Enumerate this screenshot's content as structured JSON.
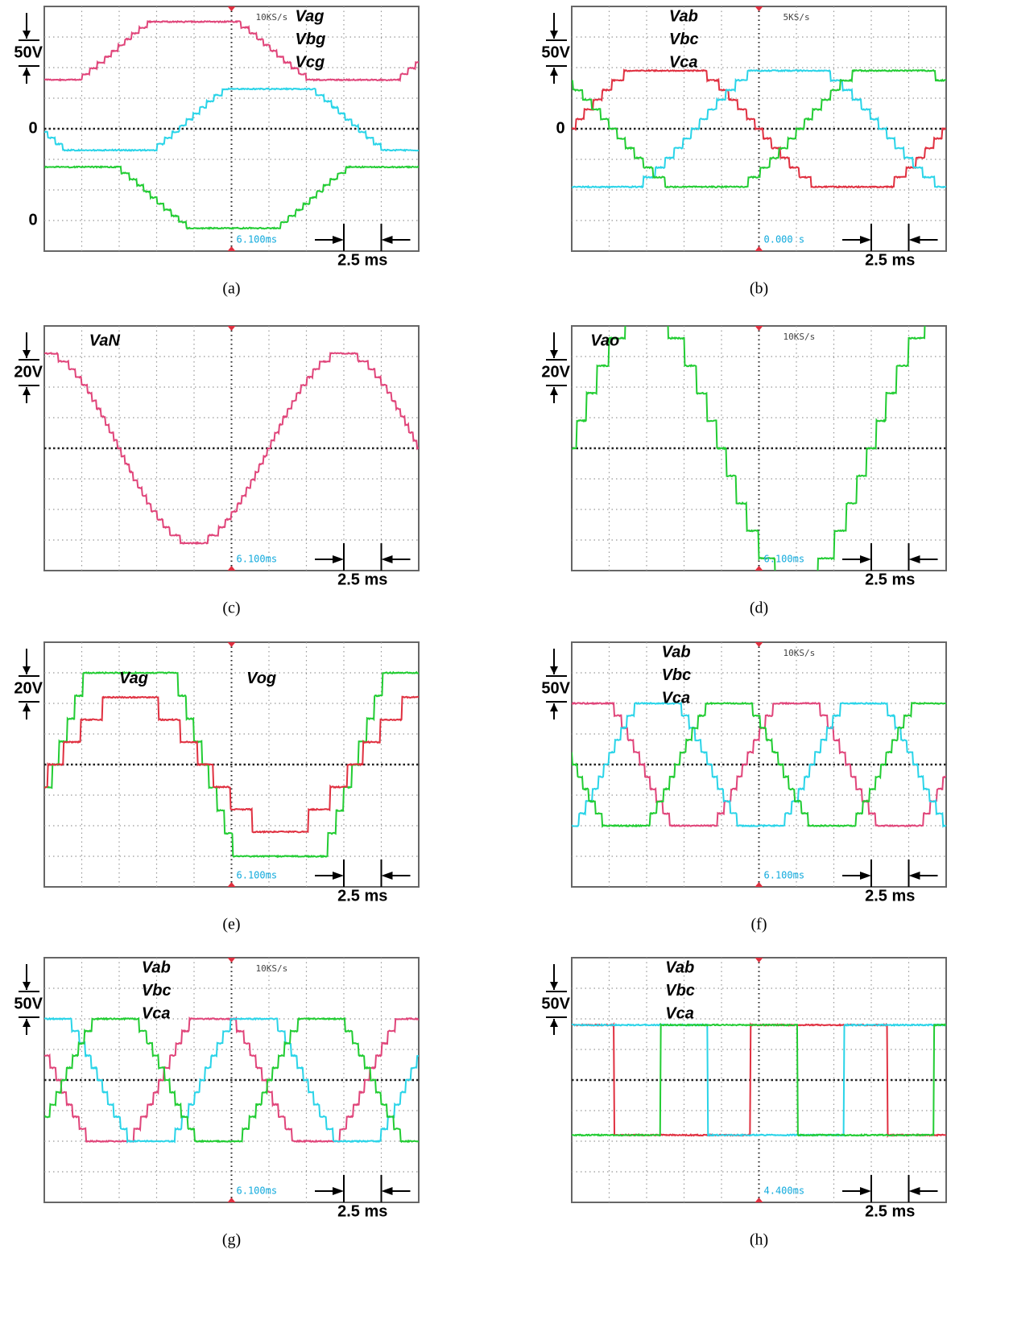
{
  "panels": [
    {
      "caption": "(a)",
      "scale": "50V",
      "zero_labels": [
        "0",
        "0"
      ],
      "signals": [
        "Vag",
        "Vbg",
        "Vcg"
      ],
      "sample_rate": "10KS/s",
      "timestamp": "6.100ms",
      "time_div": "2.5 ms"
    },
    {
      "caption": "(b)",
      "scale": "50V",
      "zero_labels": [
        "0"
      ],
      "signals": [
        "Vab",
        "Vbc",
        "Vca"
      ],
      "sample_rate": "5KS/s",
      "timestamp": "0.000 s",
      "time_div": "2.5 ms"
    },
    {
      "caption": "(c)",
      "scale": "20V",
      "zero_labels": [],
      "signals": [
        "VaN"
      ],
      "timestamp": "6.100ms",
      "time_div": "2.5 ms"
    },
    {
      "caption": "(d)",
      "scale": "20V",
      "zero_labels": [],
      "signals": [
        "Vao"
      ],
      "sample_rate": "10KS/s",
      "timestamp": "6.100ms",
      "time_div": "2.5 ms"
    },
    {
      "caption": "(e)",
      "scale": "20V",
      "zero_labels": [],
      "signals": [
        "Vag",
        "Vog"
      ],
      "timestamp": "6.100ms",
      "time_div": "2.5 ms"
    },
    {
      "caption": "(f)",
      "scale": "50V",
      "zero_labels": [],
      "signals": [
        "Vab",
        "Vbc",
        "Vca"
      ],
      "sample_rate": "10KS/s",
      "timestamp": "6.100ms",
      "time_div": "2.5 ms"
    },
    {
      "caption": "(g)",
      "scale": "50V",
      "zero_labels": [],
      "signals": [
        "Vab",
        "Vbc",
        "Vca"
      ],
      "sample_rate": "10KS/s",
      "timestamp": "6.100ms",
      "time_div": "2.5 ms"
    },
    {
      "caption": "(h)",
      "scale": "50V",
      "zero_labels": [],
      "signals": [
        "Vab",
        "Vbc",
        "Vca"
      ],
      "timestamp": "4.400ms",
      "time_div": "2.5 ms"
    }
  ]
}
